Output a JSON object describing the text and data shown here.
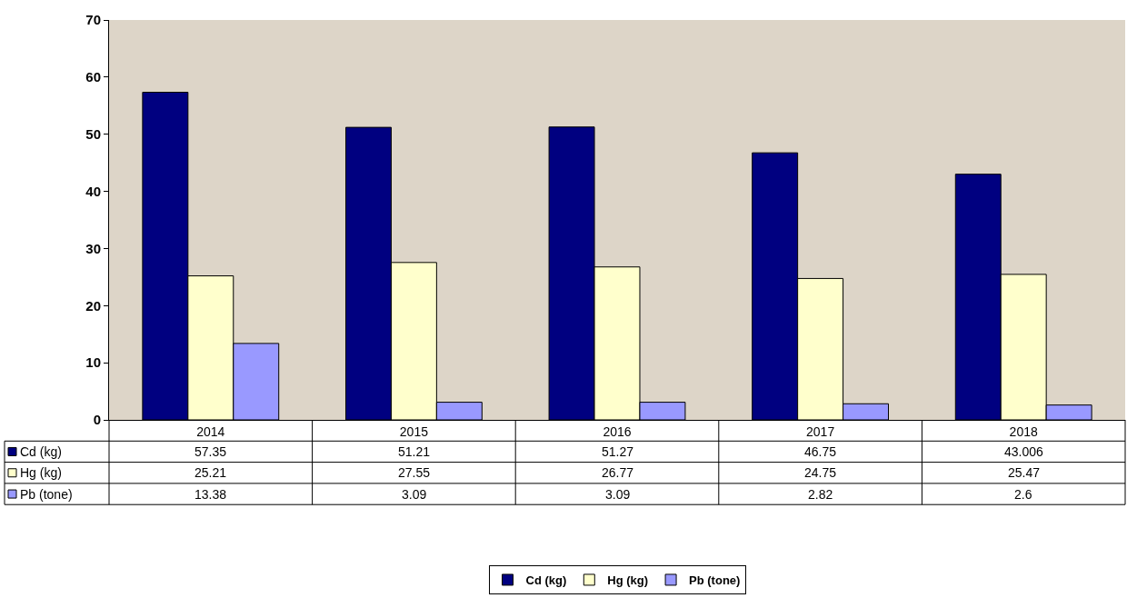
{
  "chart_data": {
    "type": "bar",
    "categories": [
      "2014",
      "2015",
      "2016",
      "2017",
      "2018"
    ],
    "series": [
      {
        "name": "Cd (kg)",
        "color": "#000080",
        "values": [
          57.35,
          51.21,
          51.27,
          46.75,
          43.006
        ]
      },
      {
        "name": "Hg (kg)",
        "color": "#ffffcc",
        "values": [
          25.21,
          27.55,
          26.77,
          24.75,
          25.47
        ]
      },
      {
        "name": "Pb (tone)",
        "color": "#9999ff",
        "values": [
          13.38,
          3.09,
          3.09,
          2.82,
          2.6
        ]
      }
    ],
    "ylim": [
      0,
      70
    ],
    "yticks": [
      0,
      10,
      20,
      30,
      40,
      50,
      60,
      70
    ],
    "grid": false,
    "legend": "bottom",
    "data_labels": true
  }
}
